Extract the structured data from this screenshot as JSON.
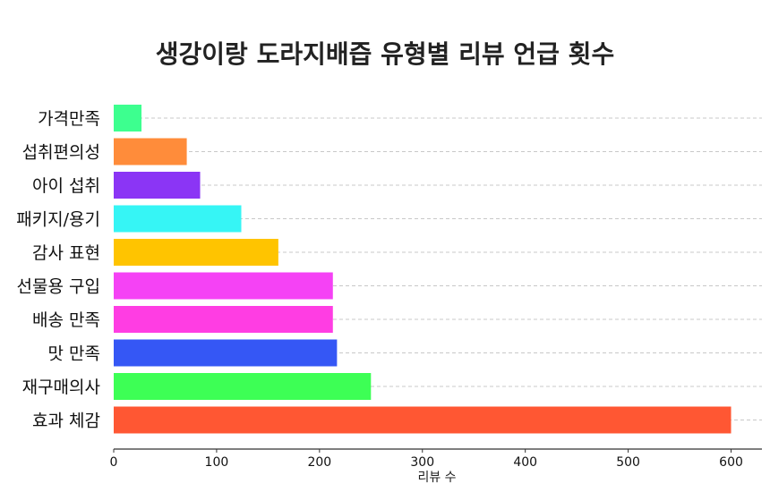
{
  "chart_data": {
    "type": "bar",
    "orientation": "horizontal",
    "title": "생강이랑 도라지배즙 유형별 리뷰 언급 횟수",
    "xlabel": "리뷰 수",
    "ylabel": "",
    "xlim": [
      0,
      630
    ],
    "xticks": [
      0,
      100,
      200,
      300,
      400,
      500,
      600
    ],
    "grid": "x-dashed",
    "categories": [
      "가격만족",
      "섭취편의성",
      "아이 섭취",
      "패키지/용기",
      "감사 표현",
      "선물용 구입",
      "배송 만족",
      "맛 만족",
      "재구매의사",
      "효과 체감"
    ],
    "values": [
      27,
      71,
      84,
      124,
      160,
      213,
      213,
      217,
      250,
      600
    ],
    "colors": [
      "#3dff8f",
      "#ff8c3a",
      "#8b35f5",
      "#36f5f5",
      "#ffc400",
      "#f542f5",
      "#ff3de3",
      "#3557f5",
      "#3dff55",
      "#ff5733"
    ]
  }
}
